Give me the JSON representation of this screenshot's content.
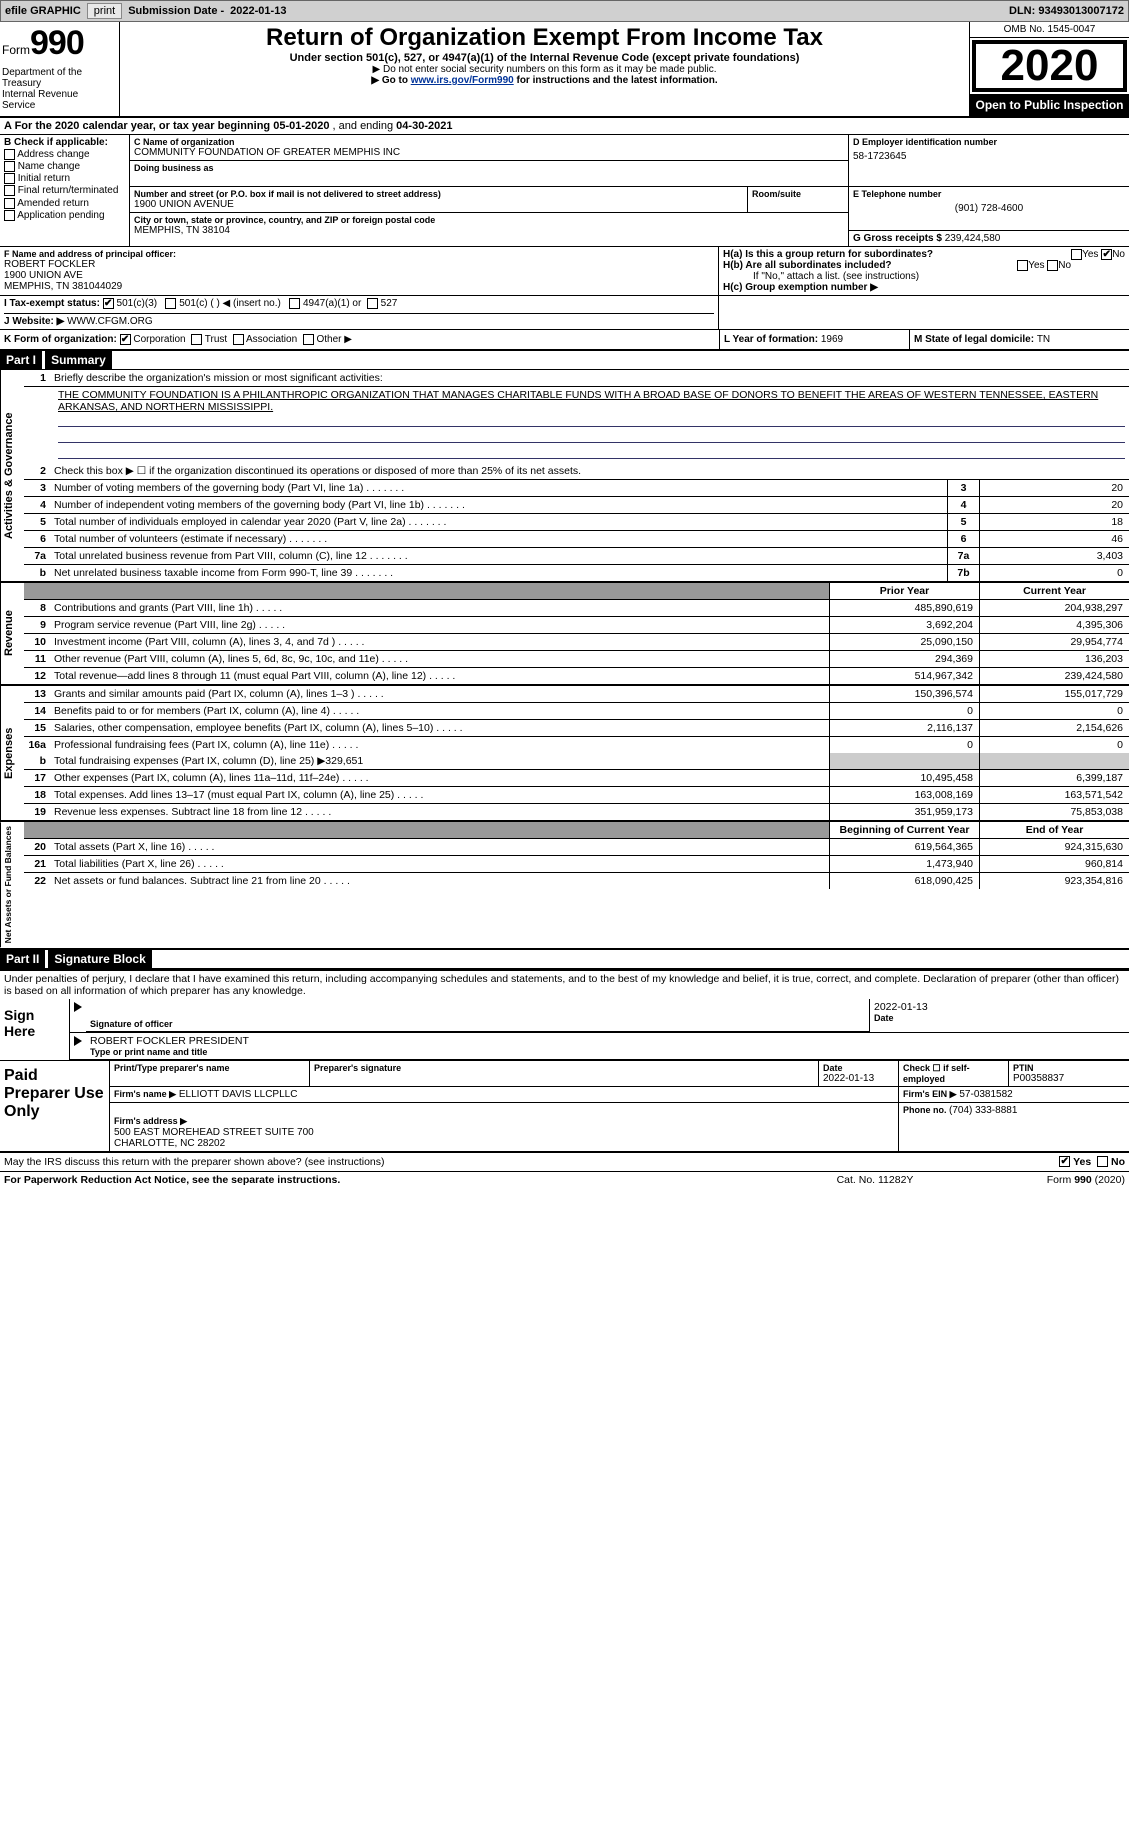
{
  "topbar": {
    "efile_label": "efile GRAPHIC",
    "print_btn": "print",
    "submission_label": "Submission Date - ",
    "submission_date": "2022-01-13",
    "dln_label": "DLN: ",
    "dln": "93493013007172"
  },
  "header": {
    "form_word": "Form",
    "form_number": "990",
    "dept": "Department of the Treasury\nInternal Revenue Service",
    "title": "Return of Organization Exempt From Income Tax",
    "subtitle": "Under section 501(c), 527, or 4947(a)(1) of the Internal Revenue Code (except private foundations)",
    "note1": "▶ Do not enter social security numbers on this form as it may be made public.",
    "note2_pre": "▶ Go to ",
    "note2_link": "www.irs.gov/Form990",
    "note2_post": " for instructions and the latest information.",
    "omb": "OMB No. 1545-0047",
    "year": "2020",
    "open": "Open to Public Inspection"
  },
  "rowA": {
    "prefix": "A For the 2020 calendar year, or tax year beginning ",
    "begin": "05-01-2020",
    "mid": " , and ending ",
    "end": "04-30-2021"
  },
  "B": {
    "title": "B Check if applicable:",
    "opts": [
      "Address change",
      "Name change",
      "Initial return",
      "Final return/terminated",
      "Amended return",
      "Application pending"
    ]
  },
  "C": {
    "name_label": "C Name of organization",
    "name": "COMMUNITY FOUNDATION OF GREATER MEMPHIS INC",
    "dba_label": "Doing business as",
    "dba": "",
    "street_label": "Number and street (or P.O. box if mail is not delivered to street address)",
    "room_label": "Room/suite",
    "street": "1900 UNION AVENUE",
    "city_label": "City or town, state or province, country, and ZIP or foreign postal code",
    "city": "MEMPHIS, TN  38104"
  },
  "D": {
    "ein_label": "D Employer identification number",
    "ein": "58-1723645",
    "phone_label": "E Telephone number",
    "phone": "(901) 728-4600",
    "gross_label": "G Gross receipts $ ",
    "gross": "239,424,580"
  },
  "F": {
    "label": "F Name and address of principal officer:",
    "name": "ROBERT FOCKLER",
    "addr1": "1900 UNION AVE",
    "addr2": "MEMPHIS, TN  381044029"
  },
  "H": {
    "a_label": "H(a) Is this a group return for subordinates?",
    "a_yes": "Yes",
    "a_no": "No",
    "b_label": "H(b) Are all subordinates included?",
    "b_note": "If \"No,\" attach a list. (see instructions)",
    "c_label": "H(c) Group exemption number ▶"
  },
  "I": {
    "label": "I   Tax-exempt status:",
    "opt1": "501(c)(3)",
    "opt2": "501(c) (   ) ◀ (insert no.)",
    "opt3": "4947(a)(1) or",
    "opt4": "527"
  },
  "J": {
    "label": "J   Website: ▶",
    "val": "WWW.CFGM.ORG"
  },
  "K": {
    "label": "K Form of organization:",
    "opt1": "Corporation",
    "opt2": "Trust",
    "opt3": "Association",
    "opt4": "Other ▶",
    "L_label": "L Year of formation: ",
    "L_val": "1969",
    "M_label": "M State of legal domicile: ",
    "M_val": "TN"
  },
  "part1": {
    "part": "Part I",
    "title": "Summary",
    "mission_label": "Briefly describe the organization's mission or most significant activities:",
    "mission": "THE COMMUNITY FOUNDATION IS A PHILANTHROPIC ORGANIZATION THAT MANAGES CHARITABLE FUNDS WITH A BROAD BASE OF DONORS TO BENEFIT THE AREAS OF WESTERN TENNESSEE, EASTERN ARKANSAS, AND NORTHERN MISSISSIPPI.",
    "line2": "Check this box ▶ ☐ if the organization discontinued its operations or disposed of more than 25% of its net assets.",
    "vtab1": "Activities & Governance",
    "vtab2": "Revenue",
    "vtab3": "Expenses",
    "vtab4": "Net Assets or Fund Balances",
    "lines_gov": [
      {
        "n": "3",
        "label": "Number of voting members of the governing body (Part VI, line 1a)",
        "box": "3",
        "val": "20"
      },
      {
        "n": "4",
        "label": "Number of independent voting members of the governing body (Part VI, line 1b)",
        "box": "4",
        "val": "20"
      },
      {
        "n": "5",
        "label": "Total number of individuals employed in calendar year 2020 (Part V, line 2a)",
        "box": "5",
        "val": "18"
      },
      {
        "n": "6",
        "label": "Total number of volunteers (estimate if necessary)",
        "box": "6",
        "val": "46"
      },
      {
        "n": "7a",
        "label": "Total unrelated business revenue from Part VIII, column (C), line 12",
        "box": "7a",
        "val": "3,403"
      },
      {
        "n": "b",
        "label": "Net unrelated business taxable income from Form 990-T, line 39",
        "box": "7b",
        "val": "0"
      }
    ],
    "prior_hdr": "Prior Year",
    "current_hdr": "Current Year",
    "lines_rev": [
      {
        "n": "8",
        "label": "Contributions and grants (Part VIII, line 1h)",
        "prior": "485,890,619",
        "cur": "204,938,297"
      },
      {
        "n": "9",
        "label": "Program service revenue (Part VIII, line 2g)",
        "prior": "3,692,204",
        "cur": "4,395,306"
      },
      {
        "n": "10",
        "label": "Investment income (Part VIII, column (A), lines 3, 4, and 7d )",
        "prior": "25,090,150",
        "cur": "29,954,774"
      },
      {
        "n": "11",
        "label": "Other revenue (Part VIII, column (A), lines 5, 6d, 8c, 9c, 10c, and 11e)",
        "prior": "294,369",
        "cur": "136,203"
      },
      {
        "n": "12",
        "label": "Total revenue—add lines 8 through 11 (must equal Part VIII, column (A), line 12)",
        "prior": "514,967,342",
        "cur": "239,424,580"
      }
    ],
    "lines_exp": [
      {
        "n": "13",
        "label": "Grants and similar amounts paid (Part IX, column (A), lines 1–3 )",
        "prior": "150,396,574",
        "cur": "155,017,729"
      },
      {
        "n": "14",
        "label": "Benefits paid to or for members (Part IX, column (A), line 4)",
        "prior": "0",
        "cur": "0"
      },
      {
        "n": "15",
        "label": "Salaries, other compensation, employee benefits (Part IX, column (A), lines 5–10)",
        "prior": "2,116,137",
        "cur": "2,154,626"
      },
      {
        "n": "16a",
        "label": "Professional fundraising fees (Part IX, column (A), line 11e)",
        "prior": "0",
        "cur": "0"
      }
    ],
    "line16b_label": "Total fundraising expenses (Part IX, column (D), line 25) ▶",
    "line16b_val": "329,651",
    "lines_exp2": [
      {
        "n": "17",
        "label": "Other expenses (Part IX, column (A), lines 11a–11d, 11f–24e)",
        "prior": "10,495,458",
        "cur": "6,399,187"
      },
      {
        "n": "18",
        "label": "Total expenses. Add lines 13–17 (must equal Part IX, column (A), line 25)",
        "prior": "163,008,169",
        "cur": "163,571,542"
      },
      {
        "n": "19",
        "label": "Revenue less expenses. Subtract line 18 from line 12",
        "prior": "351,959,173",
        "cur": "75,853,038"
      }
    ],
    "beg_hdr": "Beginning of Current Year",
    "end_hdr": "End of Year",
    "lines_na": [
      {
        "n": "20",
        "label": "Total assets (Part X, line 16)",
        "prior": "619,564,365",
        "cur": "924,315,630"
      },
      {
        "n": "21",
        "label": "Total liabilities (Part X, line 26)",
        "prior": "1,473,940",
        "cur": "960,814"
      },
      {
        "n": "22",
        "label": "Net assets or fund balances. Subtract line 21 from line 20",
        "prior": "618,090,425",
        "cur": "923,354,816"
      }
    ]
  },
  "part2": {
    "part": "Part II",
    "title": "Signature Block",
    "decl": "Under penalties of perjury, I declare that I have examined this return, including accompanying schedules and statements, and to the best of my knowledge and belief, it is true, correct, and complete. Declaration of preparer (other than officer) is based on all information of which preparer has any knowledge.",
    "sign_here": "Sign Here",
    "sig_officer_lbl": "Signature of officer",
    "date_lbl": "Date",
    "sig_date": "2022-01-13",
    "sig_name": "ROBERT FOCKLER  PRESIDENT",
    "sig_name_lbl": "Type or print name and title",
    "paid_prep": "Paid Preparer Use Only",
    "prep_name_lbl": "Print/Type preparer's name",
    "prep_sig_lbl": "Preparer's signature",
    "prep_date_lbl": "Date",
    "prep_date": "2022-01-13",
    "prep_check_lbl": "Check ☐ if self-employed",
    "ptin_lbl": "PTIN",
    "ptin": "P00358837",
    "firm_name_lbl": "Firm's name    ▶",
    "firm_name": "ELLIOTT DAVIS LLCPLLC",
    "firm_ein_lbl": "Firm's EIN ▶",
    "firm_ein": "57-0381582",
    "firm_addr_lbl": "Firm's address ▶",
    "firm_addr": "500 EAST MOREHEAD STREET SUITE 700\nCHARLOTTE, NC  28202",
    "firm_phone_lbl": "Phone no. ",
    "firm_phone": "(704) 333-8881",
    "discuss": "May the IRS discuss this return with the preparer shown above? (see instructions)",
    "yes": "Yes",
    "no": "No"
  },
  "footer": {
    "left": "For Paperwork Reduction Act Notice, see the separate instructions.",
    "mid": "Cat. No. 11282Y",
    "right": "Form 990 (2020)"
  },
  "colors": {
    "link": "#003399",
    "topbar_bg": "#d0d0d0",
    "black": "#000000"
  }
}
